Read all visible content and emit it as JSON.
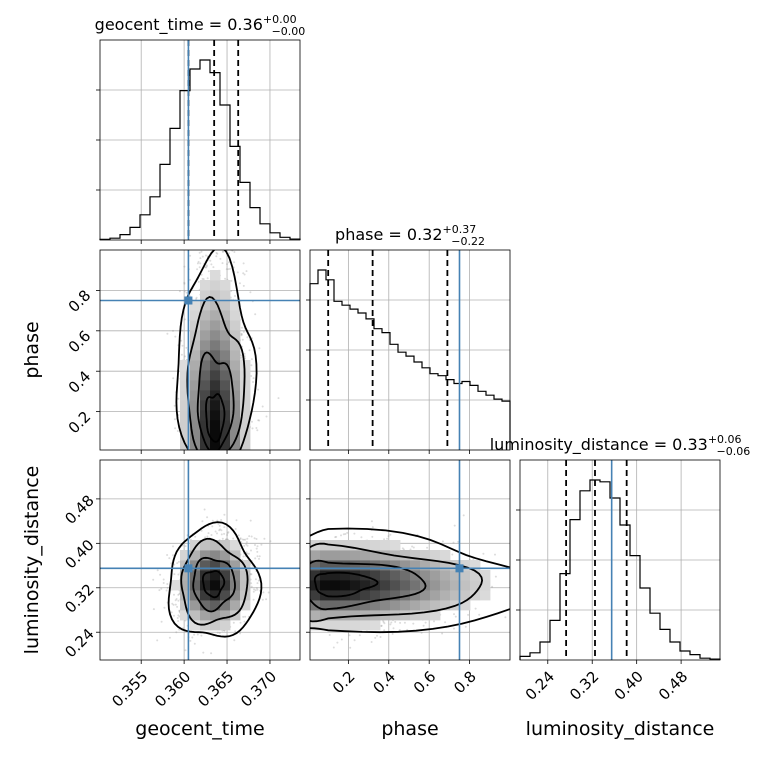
{
  "chart_data": {
    "type": "corner",
    "parameters": [
      {
        "name": "geocent_time",
        "range": [
          0.3502,
          0.3735
        ],
        "ticks": [
          0.355,
          0.36,
          0.365,
          0.37
        ],
        "tick_labels": [
          "0.355",
          "0.360",
          "0.365",
          "0.370"
        ],
        "truth": 0.3605,
        "quantiles": [
          0.3605,
          0.3635,
          0.3663
        ]
      },
      {
        "name": "phase",
        "range": [
          0.01,
          1.0
        ],
        "ticks": [
          0.2,
          0.4,
          0.6,
          0.8
        ],
        "tick_labels": [
          "0.2",
          "0.4",
          "0.6",
          "0.8"
        ],
        "truth": 0.75,
        "quantiles": [
          0.1,
          0.32,
          0.69
        ]
      },
      {
        "name": "luminosity_distance",
        "range": [
          0.19,
          0.55
        ],
        "ticks": [
          0.24,
          0.32,
          0.4,
          0.48
        ],
        "tick_labels": [
          "0.24",
          "0.32",
          "0.40",
          "0.48"
        ],
        "truth": 0.355,
        "quantiles": [
          0.273,
          0.325,
          0.382
        ]
      }
    ],
    "titles": [
      {
        "label": "geocent_time = 0.36",
        "sup": "+0.00",
        "sub": "−0.00"
      },
      {
        "label": "phase = 0.32",
        "sup": "+0.37",
        "sub": "−0.22"
      },
      {
        "label": "luminosity_distance = 0.33",
        "sup": "+0.06",
        "sub": "−0.06"
      }
    ],
    "histograms": [
      [
        0.004,
        0.01,
        0.03,
        0.07,
        0.14,
        0.24,
        0.42,
        0.62,
        0.83,
        0.95,
        1.0,
        0.93,
        0.75,
        0.52,
        0.32,
        0.18,
        0.09,
        0.04,
        0.015,
        0.005
      ],
      [
        0.85,
        0.92,
        0.87,
        0.76,
        0.74,
        0.72,
        0.7,
        0.67,
        0.62,
        0.6,
        0.54,
        0.5,
        0.48,
        0.45,
        0.42,
        0.39,
        0.38,
        0.36,
        0.34,
        0.35,
        0.33,
        0.3,
        0.28,
        0.26,
        0.25
      ],
      [
        0.02,
        0.04,
        0.1,
        0.22,
        0.48,
        0.78,
        0.94,
        1.0,
        0.99,
        0.9,
        0.75,
        0.58,
        0.4,
        0.26,
        0.17,
        0.1,
        0.05,
        0.03,
        0.01,
        0.005
      ]
    ],
    "truth_color": "#4682b4",
    "line_color": "#000000",
    "grid": true
  }
}
